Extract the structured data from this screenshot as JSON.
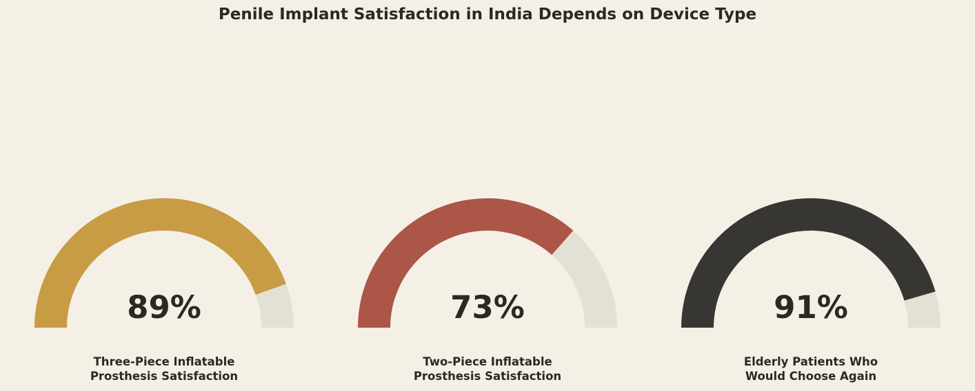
{
  "chart_data": {
    "type": "gauge",
    "title": "Penile Implant Satisfaction in India Depends on Device Type",
    "scale": [
      0,
      100
    ],
    "unit": "%",
    "track_color": "#e3e1d6",
    "background_color": "#f5f0e6",
    "text_color": "#2b2926",
    "gauges": [
      {
        "value": 89,
        "value_label": "89%",
        "label_lines": [
          "Three-Piece Inflatable",
          "Prosthesis Satisfaction"
        ],
        "color": "#c89b45"
      },
      {
        "value": 73,
        "value_label": "73%",
        "label_lines": [
          "Two-Piece Inflatable",
          "Prosthesis Satisfaction"
        ],
        "color": "#ab5646"
      },
      {
        "value": 91,
        "value_label": "91%",
        "label_lines": [
          "Elderly Patients Who",
          "Would Choose Again"
        ],
        "color": "#383632"
      }
    ]
  }
}
